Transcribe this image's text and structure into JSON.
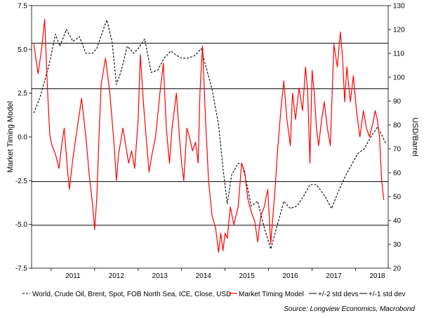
{
  "chart_data": {
    "type": "line",
    "title": "",
    "xlabel": "",
    "ylabel_left": "Market Timing Model",
    "ylabel_right": "USD/Barrel",
    "x_ticks": [
      "2011",
      "2012",
      "2013",
      "2014",
      "2015",
      "2016",
      "2017",
      "2018"
    ],
    "y_left_ticks": [
      "7.5",
      "5.0",
      "2.5",
      "0.0",
      "-2.5",
      "-5.0",
      "-7.5"
    ],
    "y_right_ticks": [
      "130",
      "120",
      "110",
      "100",
      "90",
      "80",
      "70",
      "60",
      "50",
      "40",
      "30",
      "20"
    ],
    "ylim_left": [
      -7.5,
      7.5
    ],
    "ylim_right": [
      20,
      130
    ],
    "xlim": [
      2010.55,
      2018.75
    ],
    "grid": false,
    "std_lines": {
      "plus2": 5.35,
      "plus1": 2.75,
      "minus1": -2.55,
      "minus2": -5.05
    },
    "series": [
      {
        "name": "World, Crude Oil, Brent, Spot, FOB North Sea, ICE, Close, USD",
        "axis": "right",
        "color": "#000000",
        "dash": true,
        "points": [
          [
            2010.6,
            85
          ],
          [
            2010.75,
            92
          ],
          [
            2010.95,
            105
          ],
          [
            2011.1,
            118
          ],
          [
            2011.2,
            113
          ],
          [
            2011.35,
            120
          ],
          [
            2011.5,
            115
          ],
          [
            2011.65,
            117
          ],
          [
            2011.8,
            110
          ],
          [
            2011.95,
            110
          ],
          [
            2012.05,
            112
          ],
          [
            2012.2,
            120
          ],
          [
            2012.28,
            124
          ],
          [
            2012.4,
            115
          ],
          [
            2012.5,
            97
          ],
          [
            2012.6,
            102
          ],
          [
            2012.75,
            113
          ],
          [
            2012.9,
            110
          ],
          [
            2013.0,
            112
          ],
          [
            2013.15,
            116
          ],
          [
            2013.3,
            102
          ],
          [
            2013.45,
            103
          ],
          [
            2013.6,
            108
          ],
          [
            2013.75,
            111
          ],
          [
            2013.9,
            109
          ],
          [
            2014.0,
            108
          ],
          [
            2014.15,
            108
          ],
          [
            2014.3,
            109
          ],
          [
            2014.45,
            112
          ],
          [
            2014.55,
            105
          ],
          [
            2014.7,
            95
          ],
          [
            2014.85,
            80
          ],
          [
            2014.95,
            62
          ],
          [
            2015.05,
            47
          ],
          [
            2015.15,
            59
          ],
          [
            2015.3,
            64
          ],
          [
            2015.4,
            63
          ],
          [
            2015.5,
            55
          ],
          [
            2015.6,
            46
          ],
          [
            2015.75,
            48
          ],
          [
            2015.9,
            37
          ],
          [
            2016.0,
            31
          ],
          [
            2016.05,
            28
          ],
          [
            2016.2,
            38
          ],
          [
            2016.35,
            48
          ],
          [
            2016.5,
            45
          ],
          [
            2016.65,
            46
          ],
          [
            2016.8,
            50
          ],
          [
            2016.95,
            55
          ],
          [
            2017.1,
            55
          ],
          [
            2017.3,
            50
          ],
          [
            2017.45,
            45
          ],
          [
            2017.6,
            52
          ],
          [
            2017.75,
            58
          ],
          [
            2017.9,
            63
          ],
          [
            2018.05,
            68
          ],
          [
            2018.2,
            70
          ],
          [
            2018.35,
            75
          ],
          [
            2018.5,
            79
          ],
          [
            2018.6,
            76
          ],
          [
            2018.7,
            72
          ]
        ]
      },
      {
        "name": "Market Timing Model",
        "axis": "left",
        "color": "#ff0000",
        "dash": false,
        "points": [
          [
            2010.6,
            5.3
          ],
          [
            2010.7,
            3.6
          ],
          [
            2010.78,
            5.0
          ],
          [
            2010.85,
            6.7
          ],
          [
            2010.92,
            2.5
          ],
          [
            2010.97,
            0.1
          ],
          [
            2011.02,
            -0.5
          ],
          [
            2011.1,
            -1.0
          ],
          [
            2011.18,
            -1.8
          ],
          [
            2011.25,
            -0.3
          ],
          [
            2011.3,
            0.5
          ],
          [
            2011.38,
            -2.0
          ],
          [
            2011.42,
            -3.0
          ],
          [
            2011.5,
            -1.2
          ],
          [
            2011.6,
            0.5
          ],
          [
            2011.7,
            2.2
          ],
          [
            2011.8,
            0.0
          ],
          [
            2011.88,
            -2.3
          ],
          [
            2011.95,
            -3.8
          ],
          [
            2012.0,
            -5.3
          ],
          [
            2012.05,
            -3.5
          ],
          [
            2012.1,
            0.0
          ],
          [
            2012.15,
            3.0
          ],
          [
            2012.25,
            4.5
          ],
          [
            2012.35,
            2.5
          ],
          [
            2012.45,
            -0.5
          ],
          [
            2012.5,
            -2.5
          ],
          [
            2012.55,
            -1.0
          ],
          [
            2012.65,
            0.5
          ],
          [
            2012.78,
            -1.5
          ],
          [
            2012.85,
            -0.8
          ],
          [
            2012.92,
            -1.8
          ],
          [
            2013.0,
            1.0
          ],
          [
            2013.05,
            4.7
          ],
          [
            2013.12,
            2.0
          ],
          [
            2013.2,
            -0.5
          ],
          [
            2013.25,
            -2.0
          ],
          [
            2013.32,
            -1.0
          ],
          [
            2013.4,
            0.0
          ],
          [
            2013.5,
            2.5
          ],
          [
            2013.58,
            4.2
          ],
          [
            2013.65,
            0.5
          ],
          [
            2013.72,
            -1.5
          ],
          [
            2013.78,
            0.5
          ],
          [
            2013.88,
            2.5
          ],
          [
            2013.95,
            0.0
          ],
          [
            2014.0,
            -1.5
          ],
          [
            2014.05,
            -2.5
          ],
          [
            2014.12,
            0.5
          ],
          [
            2014.18,
            0.0
          ],
          [
            2014.25,
            -0.8
          ],
          [
            2014.32,
            -0.3
          ],
          [
            2014.38,
            -1.5
          ],
          [
            2014.42,
            2.5
          ],
          [
            2014.48,
            5.2
          ],
          [
            2014.55,
            1.0
          ],
          [
            2014.62,
            -2.5
          ],
          [
            2014.7,
            -4.5
          ],
          [
            2014.78,
            -5.2
          ],
          [
            2014.85,
            -6.6
          ],
          [
            2014.9,
            -5.5
          ],
          [
            2014.95,
            -6.5
          ],
          [
            2015.0,
            -5.5
          ],
          [
            2015.05,
            -5.8
          ],
          [
            2015.12,
            -4.0
          ],
          [
            2015.2,
            -5.0
          ],
          [
            2015.3,
            -4.0
          ],
          [
            2015.38,
            -1.5
          ],
          [
            2015.45,
            -2.0
          ],
          [
            2015.52,
            -3.5
          ],
          [
            2015.6,
            -4.3
          ],
          [
            2015.68,
            -4.8
          ],
          [
            2015.75,
            -6.0
          ],
          [
            2015.82,
            -4.5
          ],
          [
            2015.9,
            -4.0
          ],
          [
            2015.98,
            -3.0
          ],
          [
            2016.05,
            -6.1
          ],
          [
            2016.1,
            -4.5
          ],
          [
            2016.15,
            -3.0
          ],
          [
            2016.2,
            -1.0
          ],
          [
            2016.28,
            1.5
          ],
          [
            2016.35,
            3.2
          ],
          [
            2016.42,
            1.0
          ],
          [
            2016.5,
            -0.5
          ],
          [
            2016.55,
            2.5
          ],
          [
            2016.62,
            1.0
          ],
          [
            2016.7,
            2.8
          ],
          [
            2016.78,
            1.5
          ],
          [
            2016.85,
            4.0
          ],
          [
            2016.9,
            2.5
          ],
          [
            2016.95,
            -1.5
          ],
          [
            2017.0,
            3.8
          ],
          [
            2017.05,
            2.5
          ],
          [
            2017.1,
            0.5
          ],
          [
            2017.15,
            -0.5
          ],
          [
            2017.22,
            1.0
          ],
          [
            2017.28,
            2.0
          ],
          [
            2017.35,
            0.5
          ],
          [
            2017.42,
            -0.5
          ],
          [
            2017.5,
            5.3
          ],
          [
            2017.58,
            4.0
          ],
          [
            2017.65,
            6.0
          ],
          [
            2017.7,
            4.5
          ],
          [
            2017.75,
            2.0
          ],
          [
            2017.8,
            4.0
          ],
          [
            2017.88,
            2.0
          ],
          [
            2017.95,
            3.5
          ],
          [
            2018.02,
            1.5
          ],
          [
            2018.1,
            0.0
          ],
          [
            2018.18,
            1.5
          ],
          [
            2018.25,
            0.5
          ],
          [
            2018.32,
            0.0
          ],
          [
            2018.4,
            0.8
          ],
          [
            2018.45,
            1.5
          ],
          [
            2018.5,
            1.0
          ],
          [
            2018.55,
            0.0
          ],
          [
            2018.6,
            -2.5
          ],
          [
            2018.65,
            -3.6
          ]
        ]
      }
    ],
    "legend": {
      "position": "bottom",
      "entries": [
        {
          "label": "World, Crude Oil, Brent, Spot, FOB North Sea, ICE, Close, USD",
          "color": "#000000",
          "style": "dashed"
        },
        {
          "label": "Market Timing Model",
          "color": "#ff0000",
          "style": "solid"
        },
        {
          "label": "+/-2 std devs",
          "color": "#000000",
          "style": "solid"
        },
        {
          "label": "+/-1 std dev",
          "color": "#000000",
          "style": "solid"
        }
      ]
    },
    "source": "Source: Longview Economics, Macrobond"
  }
}
